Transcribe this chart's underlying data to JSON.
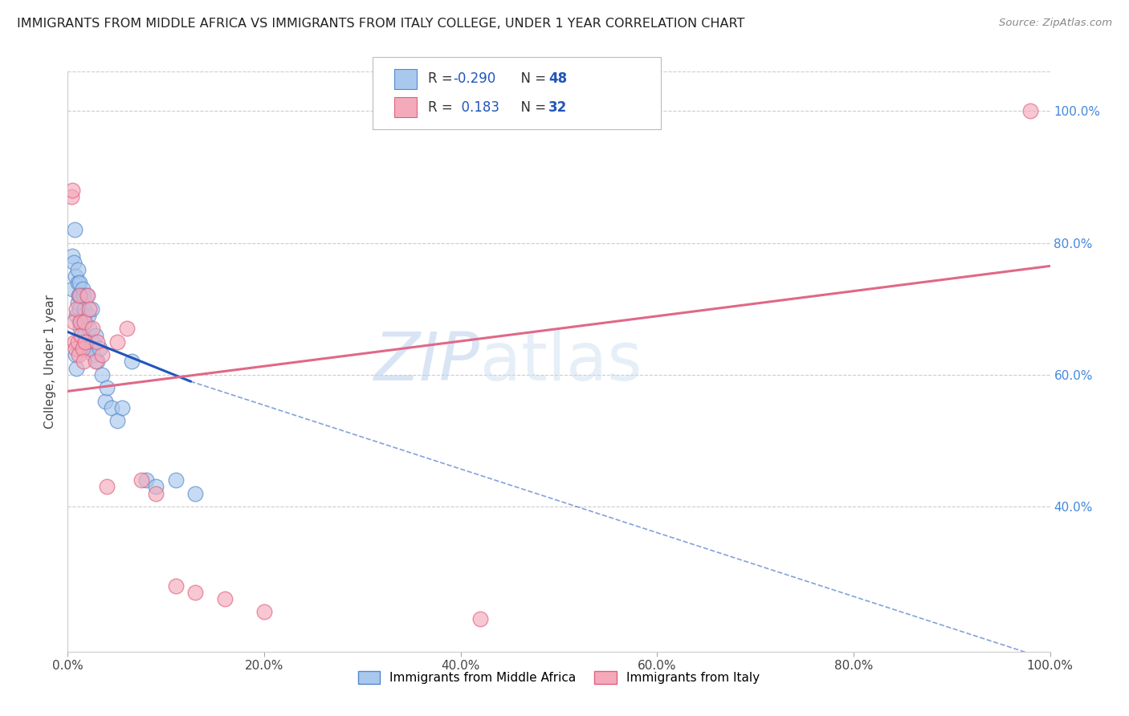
{
  "title": "IMMIGRANTS FROM MIDDLE AFRICA VS IMMIGRANTS FROM ITALY COLLEGE, UNDER 1 YEAR CORRELATION CHART",
  "source": "Source: ZipAtlas.com",
  "ylabel": "College, Under 1 year",
  "xlim": [
    0.0,
    1.0
  ],
  "ylim": [
    0.18,
    1.06
  ],
  "xtick_labels": [
    "0.0%",
    "20.0%",
    "40.0%",
    "60.0%",
    "80.0%",
    "100.0%"
  ],
  "xtick_vals": [
    0.0,
    0.2,
    0.4,
    0.6,
    0.8,
    1.0
  ],
  "ytick_labels_right": [
    "100.0%",
    "80.0%",
    "60.0%",
    "40.0%"
  ],
  "ytick_vals_right": [
    1.0,
    0.8,
    0.6,
    0.4
  ],
  "blue_color": "#A8C8EE",
  "pink_color": "#F4AABB",
  "blue_edge_color": "#5588CC",
  "pink_edge_color": "#E06080",
  "blue_line_color": "#2255BB",
  "pink_line_color": "#E06888",
  "watermark_zip": "ZIP",
  "watermark_atlas": "atlas",
  "legend_label1": "Immigrants from Middle Africa",
  "legend_label2": "Immigrants from Italy",
  "blue_x": [
    0.005,
    0.005,
    0.006,
    0.007,
    0.008,
    0.009,
    0.01,
    0.01,
    0.01,
    0.011,
    0.012,
    0.012,
    0.012,
    0.013,
    0.013,
    0.014,
    0.015,
    0.015,
    0.016,
    0.016,
    0.017,
    0.017,
    0.018,
    0.018,
    0.019,
    0.02,
    0.021,
    0.022,
    0.023,
    0.024,
    0.025,
    0.026,
    0.028,
    0.03,
    0.032,
    0.035,
    0.038,
    0.04,
    0.045,
    0.05,
    0.055,
    0.065,
    0.08,
    0.09,
    0.11,
    0.13,
    0.008,
    0.009
  ],
  "blue_y": [
    0.78,
    0.73,
    0.77,
    0.82,
    0.75,
    0.69,
    0.74,
    0.76,
    0.71,
    0.72,
    0.74,
    0.7,
    0.68,
    0.72,
    0.67,
    0.65,
    0.73,
    0.68,
    0.72,
    0.69,
    0.66,
    0.7,
    0.68,
    0.64,
    0.72,
    0.65,
    0.69,
    0.67,
    0.64,
    0.7,
    0.65,
    0.63,
    0.66,
    0.62,
    0.64,
    0.6,
    0.56,
    0.58,
    0.55,
    0.53,
    0.55,
    0.62,
    0.44,
    0.43,
    0.44,
    0.42,
    0.63,
    0.61
  ],
  "pink_x": [
    0.004,
    0.005,
    0.006,
    0.007,
    0.008,
    0.009,
    0.01,
    0.011,
    0.012,
    0.013,
    0.014,
    0.015,
    0.016,
    0.017,
    0.018,
    0.02,
    0.022,
    0.025,
    0.028,
    0.03,
    0.035,
    0.04,
    0.05,
    0.06,
    0.075,
    0.09,
    0.11,
    0.13,
    0.16,
    0.2,
    0.42,
    0.98
  ],
  "pink_y": [
    0.87,
    0.88,
    0.68,
    0.65,
    0.64,
    0.7,
    0.65,
    0.63,
    0.72,
    0.68,
    0.66,
    0.64,
    0.62,
    0.68,
    0.65,
    0.72,
    0.7,
    0.67,
    0.62,
    0.65,
    0.63,
    0.43,
    0.65,
    0.67,
    0.44,
    0.42,
    0.28,
    0.27,
    0.26,
    0.24,
    0.23,
    1.0
  ],
  "blue_line_x0": 0.0,
  "blue_line_y0": 0.665,
  "blue_line_x1": 0.125,
  "blue_line_y1": 0.59,
  "blue_line_xdash_end": 1.0,
  "blue_line_ydash_end": 0.167,
  "pink_line_x0": 0.0,
  "pink_line_y0": 0.575,
  "pink_line_x1": 1.0,
  "pink_line_y1": 0.765
}
